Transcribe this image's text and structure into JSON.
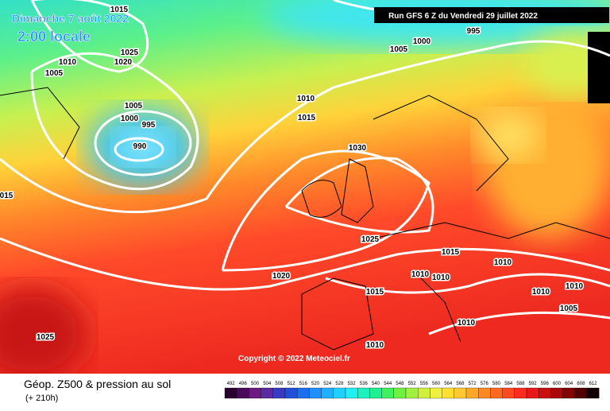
{
  "header": {
    "date": "Dimanche 7 août 2022",
    "time": "2:00 locale",
    "run": "Run GFS 6 Z du Vendredi 29 juillet 2022"
  },
  "copyright": "Copyright © 2022 Meteociel.fr",
  "footer": {
    "title": "Géop. Z500 & pression au sol",
    "lead": "(+ 210h)"
  },
  "legend": {
    "labels": [
      "492",
      "496",
      "500",
      "504",
      "508",
      "512",
      "516",
      "520",
      "524",
      "528",
      "532",
      "536",
      "540",
      "544",
      "548",
      "552",
      "556",
      "560",
      "564",
      "568",
      "572",
      "576",
      "580",
      "584",
      "588",
      "592",
      "596",
      "600",
      "604",
      "608",
      "612"
    ]
  },
  "isobars": {
    "labels": [
      "1015",
      "1025",
      "1020",
      "1010",
      "1005",
      "1005",
      "1000",
      "995",
      "990",
      "1010",
      "1015",
      "1030",
      "1025",
      "1015",
      "1010",
      "1010",
      "1010",
      "1020",
      "1015",
      "1010",
      "1010",
      "1005",
      "1010",
      "1010",
      "1025",
      "015",
      "1000",
      "1005",
      "995"
    ]
  }
}
